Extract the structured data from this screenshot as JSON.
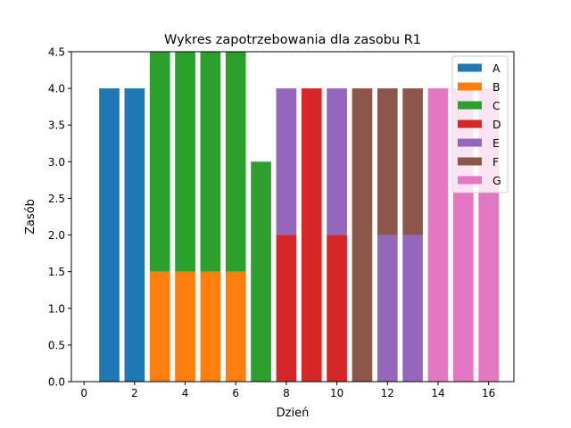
{
  "chart_data": {
    "type": "bar",
    "stacked": true,
    "title": "Wykres zapotrzebowania dla zasobu R1",
    "xlabel": "Dzień",
    "ylabel": "Zasób",
    "xlim": [
      -0.5,
      17
    ],
    "ylim": [
      0,
      4.5
    ],
    "xticks": [
      0,
      2,
      4,
      6,
      8,
      10,
      12,
      14,
      16
    ],
    "xtick_labels": [
      "0",
      "2",
      "4",
      "6",
      "8",
      "10",
      "12",
      "14",
      "16"
    ],
    "yticks": [
      0,
      0.5,
      1,
      1.5,
      2,
      2.5,
      3,
      3.5,
      4,
      4.5
    ],
    "ytick_labels": [
      "0.0",
      "0.5",
      "1.0",
      "1.5",
      "2.0",
      "2.5",
      "3.0",
      "3.5",
      "4.0",
      "4.5"
    ],
    "legend_position": "top-right",
    "bar_width": 0.8,
    "series": [
      {
        "name": "A",
        "color": "#1f77b4",
        "bars": [
          {
            "x": 1,
            "bottom": 0,
            "value": 4
          },
          {
            "x": 2,
            "bottom": 0,
            "value": 4
          }
        ]
      },
      {
        "name": "B",
        "color": "#ff7f0e",
        "bars": [
          {
            "x": 3,
            "bottom": 0,
            "value": 1.5
          },
          {
            "x": 4,
            "bottom": 0,
            "value": 1.5
          },
          {
            "x": 5,
            "bottom": 0,
            "value": 1.5
          },
          {
            "x": 6,
            "bottom": 0,
            "value": 1.5
          }
        ]
      },
      {
        "name": "C",
        "color": "#2ca02c",
        "bars": [
          {
            "x": 3,
            "bottom": 1.5,
            "value": 3
          },
          {
            "x": 4,
            "bottom": 1.5,
            "value": 3
          },
          {
            "x": 5,
            "bottom": 1.5,
            "value": 3
          },
          {
            "x": 6,
            "bottom": 1.5,
            "value": 3
          },
          {
            "x": 7,
            "bottom": 0,
            "value": 3
          }
        ]
      },
      {
        "name": "D",
        "color": "#d62728",
        "bars": [
          {
            "x": 8,
            "bottom": 0,
            "value": 2
          },
          {
            "x": 9,
            "bottom": 0,
            "value": 4
          },
          {
            "x": 10,
            "bottom": 0,
            "value": 2
          }
        ]
      },
      {
        "name": "E",
        "color": "#9467bd",
        "bars": [
          {
            "x": 8,
            "bottom": 2,
            "value": 2
          },
          {
            "x": 10,
            "bottom": 2,
            "value": 2
          },
          {
            "x": 12,
            "bottom": 0,
            "value": 2
          },
          {
            "x": 13,
            "bottom": 0,
            "value": 2
          }
        ]
      },
      {
        "name": "F",
        "color": "#8c564b",
        "bars": [
          {
            "x": 11,
            "bottom": 0,
            "value": 4
          },
          {
            "x": 12,
            "bottom": 2,
            "value": 2
          },
          {
            "x": 13,
            "bottom": 2,
            "value": 2
          }
        ]
      },
      {
        "name": "G",
        "color": "#e377c2",
        "bars": [
          {
            "x": 14,
            "bottom": 0,
            "value": 4
          },
          {
            "x": 15,
            "bottom": 0,
            "value": 4
          },
          {
            "x": 16,
            "bottom": 0,
            "value": 4
          }
        ]
      }
    ]
  }
}
